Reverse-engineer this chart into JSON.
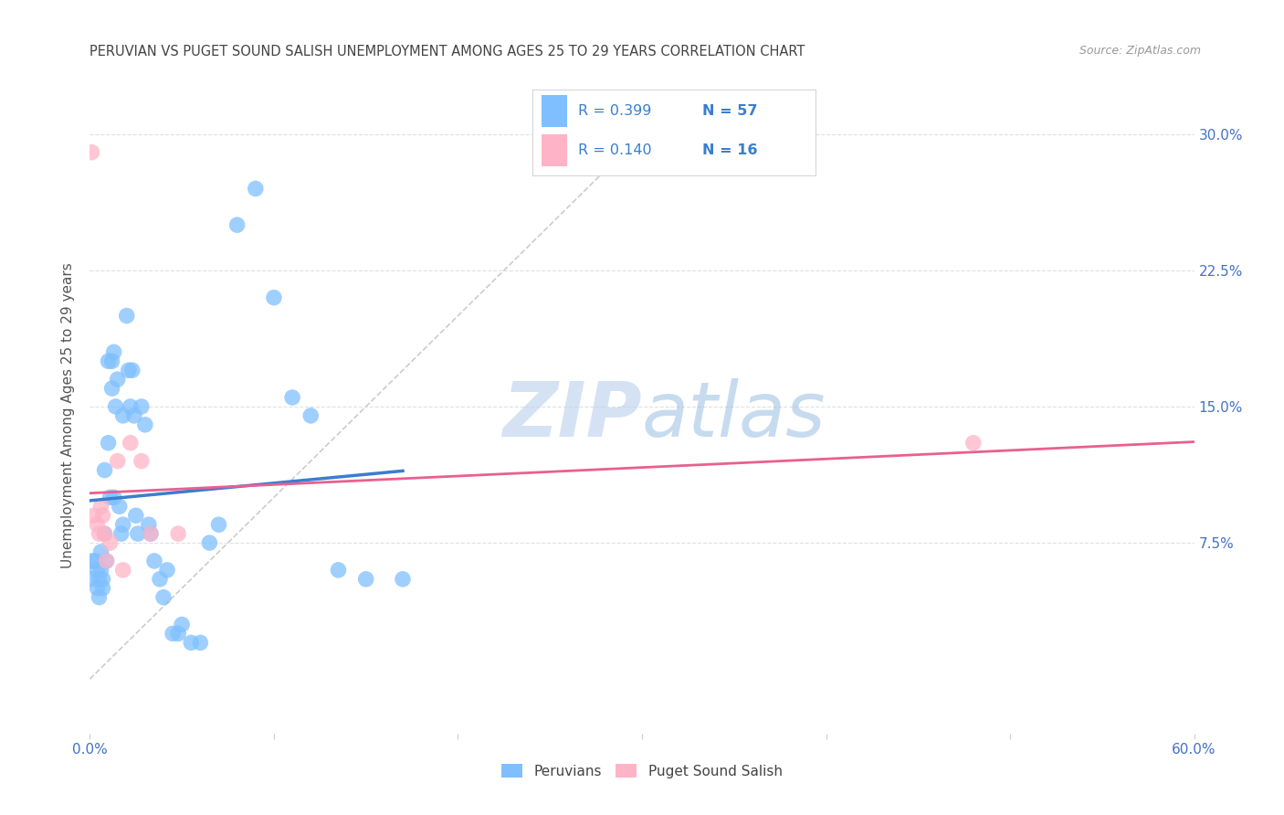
{
  "title": "PERUVIAN VS PUGET SOUND SALISH UNEMPLOYMENT AMONG AGES 25 TO 29 YEARS CORRELATION CHART",
  "source": "Source: ZipAtlas.com",
  "ylabel": "Unemployment Among Ages 25 to 29 years",
  "xlim": [
    0.0,
    0.6
  ],
  "ylim": [
    -0.03,
    0.32
  ],
  "xticks": [
    0.0,
    0.1,
    0.2,
    0.3,
    0.4,
    0.5,
    0.6
  ],
  "xticklabels": [
    "0.0%",
    "",
    "",
    "",
    "",
    "",
    "60.0%"
  ],
  "yticks": [
    0.075,
    0.15,
    0.225,
    0.3
  ],
  "yticklabels": [
    "7.5%",
    "15.0%",
    "22.5%",
    "30.0%"
  ],
  "blue_color": "#7fbfff",
  "pink_color": "#ffb3c6",
  "blue_line_color": "#3a7ecf",
  "pink_line_color": "#e86090",
  "diag_color": "#cccccc",
  "watermark_text": "ZIPatlas",
  "legend_R1": "R = 0.399",
  "legend_N1": "N = 57",
  "legend_R2": "R = 0.140",
  "legend_N2": "N = 16",
  "legend_text_color": "#3a7ecf",
  "blue_points_x": [
    0.001,
    0.001,
    0.003,
    0.004,
    0.004,
    0.005,
    0.005,
    0.006,
    0.006,
    0.007,
    0.007,
    0.008,
    0.008,
    0.009,
    0.01,
    0.01,
    0.011,
    0.012,
    0.012,
    0.013,
    0.013,
    0.014,
    0.015,
    0.016,
    0.017,
    0.018,
    0.018,
    0.02,
    0.021,
    0.022,
    0.023,
    0.024,
    0.025,
    0.026,
    0.028,
    0.03,
    0.032,
    0.033,
    0.035,
    0.038,
    0.04,
    0.042,
    0.045,
    0.048,
    0.05,
    0.055,
    0.06,
    0.065,
    0.07,
    0.08,
    0.09,
    0.1,
    0.11,
    0.12,
    0.135,
    0.15,
    0.17
  ],
  "blue_points_y": [
    0.065,
    0.055,
    0.065,
    0.06,
    0.05,
    0.055,
    0.045,
    0.07,
    0.06,
    0.055,
    0.05,
    0.115,
    0.08,
    0.065,
    0.175,
    0.13,
    0.1,
    0.175,
    0.16,
    0.18,
    0.1,
    0.15,
    0.165,
    0.095,
    0.08,
    0.085,
    0.145,
    0.2,
    0.17,
    0.15,
    0.17,
    0.145,
    0.09,
    0.08,
    0.15,
    0.14,
    0.085,
    0.08,
    0.065,
    0.055,
    0.045,
    0.06,
    0.025,
    0.025,
    0.03,
    0.02,
    0.02,
    0.075,
    0.085,
    0.25,
    0.27,
    0.21,
    0.155,
    0.145,
    0.06,
    0.055,
    0.055
  ],
  "pink_points_x": [
    0.001,
    0.002,
    0.004,
    0.005,
    0.006,
    0.007,
    0.008,
    0.009,
    0.011,
    0.015,
    0.018,
    0.022,
    0.028,
    0.033,
    0.048,
    0.48
  ],
  "pink_points_y": [
    0.29,
    0.09,
    0.085,
    0.08,
    0.095,
    0.09,
    0.08,
    0.065,
    0.075,
    0.12,
    0.06,
    0.13,
    0.12,
    0.08,
    0.08,
    0.13
  ],
  "grid_color": "#e0e0e0",
  "bg_color": "#ffffff",
  "title_color": "#444444",
  "axis_label_color": "#555555",
  "tick_color": "#4472c4",
  "source_color": "#999999"
}
